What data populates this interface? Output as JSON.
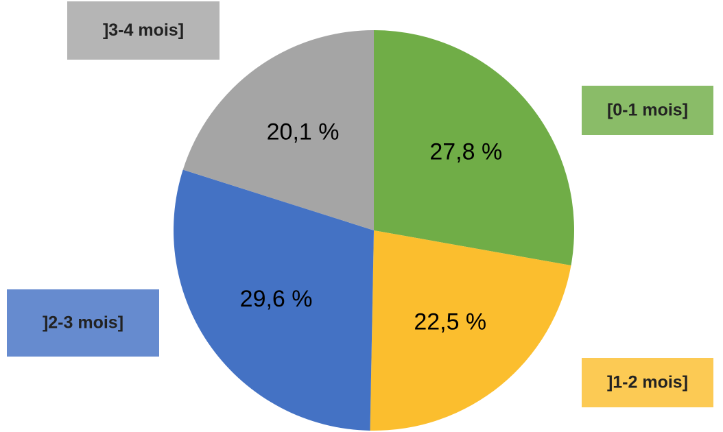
{
  "chart_data": {
    "type": "pie",
    "categories": [
      "[0-1 mois]",
      "]1-2 mois]",
      "]2-3 mois]",
      "]3-4 mois]"
    ],
    "values": [
      27.8,
      22.5,
      29.6,
      20.1
    ],
    "value_labels": [
      "27,8 %",
      "22,5 %",
      "29,6 %",
      "20,1 %"
    ],
    "colors": [
      "#70ad47",
      "#fbbe2e",
      "#4472c4",
      "#a5a5a5"
    ]
  }
}
